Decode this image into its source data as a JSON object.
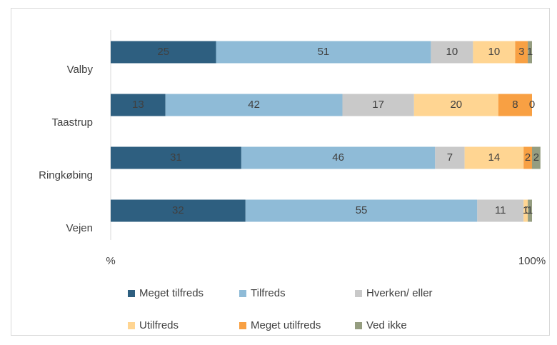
{
  "chart_data": {
    "type": "stacked_barh",
    "categories": [
      "Valby",
      "Taastrup",
      "Ringkøbing",
      "Vejen"
    ],
    "series": [
      {
        "name": "Meget tilfreds",
        "color": "#2e5f80",
        "values": [
          25,
          13,
          31,
          32
        ]
      },
      {
        "name": "Tilfreds",
        "color": "#8fbbd7",
        "values": [
          51,
          42,
          46,
          55
        ]
      },
      {
        "name": "Hverken/ eller",
        "color": "#c9c9c9",
        "values": [
          10,
          17,
          7,
          11
        ]
      },
      {
        "name": "Utilfreds",
        "color": "#ffd592",
        "values": [
          10,
          20,
          14,
          1
        ]
      },
      {
        "name": "Meget utilfreds",
        "color": "#f8a043",
        "values": [
          3,
          8,
          2,
          0
        ]
      },
      {
        "name": "Ved ikke",
        "color": "#959d80",
        "values": [
          1,
          0,
          2,
          1
        ]
      }
    ],
    "xlim": [
      0,
      100
    ],
    "xticks": [
      {
        "value": 0,
        "label": "%"
      },
      {
        "value": 100,
        "label": "100%"
      }
    ],
    "legend": "bottom"
  }
}
